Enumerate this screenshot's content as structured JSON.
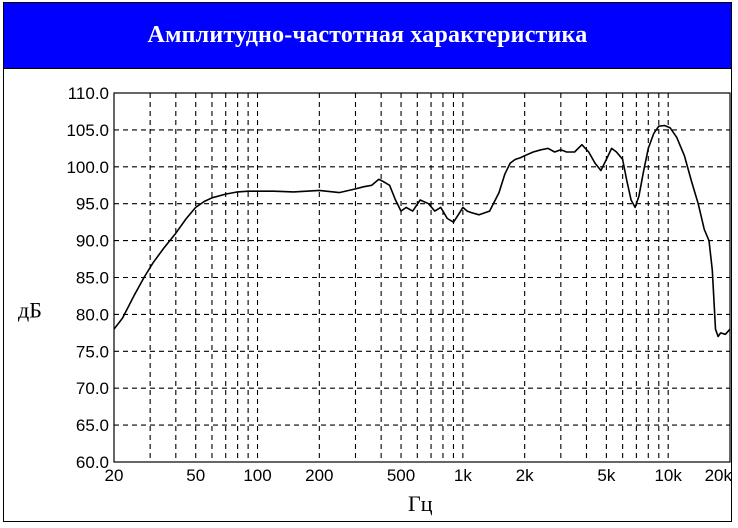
{
  "colors": {
    "header_background": "#0000ff",
    "title_text": "#ffffff",
    "curve": "#000000",
    "grid": "#000000"
  },
  "header": {
    "title": "Амплитудно-частотная характеристика"
  },
  "chart_data": {
    "type": "line",
    "title": "Амплитудно-частотная характеристика",
    "xlabel": "Гц",
    "ylabel": "дБ",
    "x_scale": "log",
    "xlim": [
      20,
      20000
    ],
    "ylim": [
      60,
      110
    ],
    "grid": true,
    "grid_style": "dashed",
    "x_ticks": [
      {
        "value": 20,
        "label": "20"
      },
      {
        "value": 50,
        "label": "50"
      },
      {
        "value": 100,
        "label": "100"
      },
      {
        "value": 200,
        "label": "200"
      },
      {
        "value": 500,
        "label": "500"
      },
      {
        "value": 1000,
        "label": "1k"
      },
      {
        "value": 2000,
        "label": "2k"
      },
      {
        "value": 5000,
        "label": "5k"
      },
      {
        "value": 10000,
        "label": "10k"
      },
      {
        "value": 20000,
        "label": "20k"
      }
    ],
    "x_minor_gridlines": [
      30,
      40,
      60,
      70,
      80,
      90,
      300,
      400,
      600,
      700,
      800,
      900,
      3000,
      4000,
      6000,
      7000,
      8000,
      9000
    ],
    "y_ticks": [
      {
        "value": 60,
        "label": "60.0"
      },
      {
        "value": 65,
        "label": "65.0"
      },
      {
        "value": 70,
        "label": "70.0"
      },
      {
        "value": 75,
        "label": "75.0"
      },
      {
        "value": 80,
        "label": "80.0"
      },
      {
        "value": 85,
        "label": "85.0"
      },
      {
        "value": 90,
        "label": "90.0"
      },
      {
        "value": 95,
        "label": "95.0"
      },
      {
        "value": 100,
        "label": "100.0"
      },
      {
        "value": 105,
        "label": "105.0"
      },
      {
        "value": 110,
        "label": "110.0"
      }
    ],
    "x": [
      20,
      22,
      25,
      28,
      31,
      35,
      40,
      45,
      50,
      55,
      60,
      70,
      80,
      90,
      100,
      120,
      150,
      200,
      250,
      300,
      330,
      360,
      390,
      410,
      440,
      470,
      500,
      530,
      570,
      620,
      680,
      730,
      780,
      840,
      900,
      950,
      1000,
      1050,
      1100,
      1200,
      1350,
      1500,
      1600,
      1700,
      1800,
      1900,
      2000,
      2200,
      2400,
      2600,
      2800,
      3000,
      3200,
      3500,
      3800,
      4100,
      4400,
      4700,
      5000,
      5300,
      5600,
      6000,
      6300,
      6600,
      6900,
      7200,
      7600,
      8000,
      8500,
      9000,
      9600,
      10200,
      11000,
      12000,
      13000,
      14000,
      15000,
      15800,
      16400,
      17000,
      17500,
      18000,
      19000,
      20000
    ],
    "series": [
      {
        "values": [
          78.0,
          79.5,
          82.5,
          85.0,
          87.0,
          89.0,
          91.0,
          93.0,
          94.5,
          95.3,
          95.8,
          96.3,
          96.6,
          96.7,
          96.7,
          96.7,
          96.6,
          96.8,
          96.5,
          97.0,
          97.3,
          97.5,
          98.3,
          98.0,
          97.5,
          95.5,
          94.0,
          94.5,
          94.0,
          95.5,
          95.0,
          94.0,
          94.5,
          93.0,
          92.5,
          93.5,
          94.5,
          94.0,
          93.8,
          93.5,
          94.0,
          96.5,
          99.0,
          100.5,
          101.0,
          101.2,
          101.5,
          102.0,
          102.3,
          102.5,
          102.0,
          102.3,
          102.0,
          102.0,
          103.0,
          102.0,
          100.5,
          99.5,
          101.0,
          102.5,
          102.0,
          101.0,
          98.0,
          95.5,
          94.5,
          96.0,
          99.5,
          102.5,
          104.5,
          105.5,
          105.6,
          105.3,
          104.0,
          101.5,
          98.0,
          95.0,
          91.5,
          90.0,
          86.0,
          78.0,
          77.0,
          77.5,
          77.3,
          78.0
        ]
      }
    ]
  }
}
